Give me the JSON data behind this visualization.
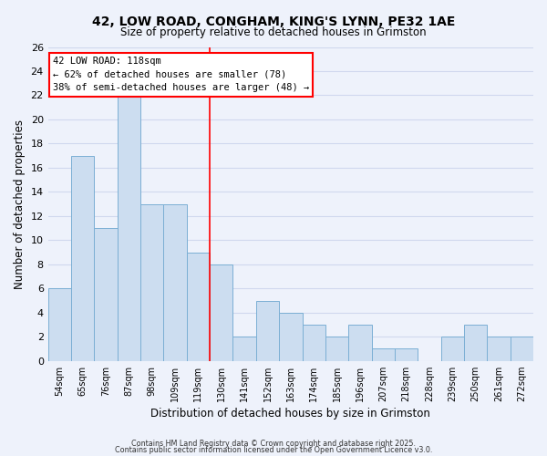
{
  "title1": "42, LOW ROAD, CONGHAM, KING'S LYNN, PE32 1AE",
  "title2": "Size of property relative to detached houses in Grimston",
  "xlabel": "Distribution of detached houses by size in Grimston",
  "ylabel": "Number of detached properties",
  "bar_color": "#ccddf0",
  "bar_edge_color": "#7bafd4",
  "categories": [
    "54sqm",
    "65sqm",
    "76sqm",
    "87sqm",
    "98sqm",
    "109sqm",
    "119sqm",
    "130sqm",
    "141sqm",
    "152sqm",
    "163sqm",
    "174sqm",
    "185sqm",
    "196sqm",
    "207sqm",
    "218sqm",
    "228sqm",
    "239sqm",
    "250sqm",
    "261sqm",
    "272sqm"
  ],
  "values": [
    6,
    17,
    11,
    22,
    13,
    13,
    9,
    8,
    2,
    5,
    4,
    3,
    2,
    3,
    1,
    1,
    0,
    2,
    3,
    2,
    2
  ],
  "ylim": [
    0,
    26
  ],
  "yticks": [
    0,
    2,
    4,
    6,
    8,
    10,
    12,
    14,
    16,
    18,
    20,
    22,
    24,
    26
  ],
  "vline_index": 6,
  "annotation_title": "42 LOW ROAD: 118sqm",
  "annotation_line1": "← 62% of detached houses are smaller (78)",
  "annotation_line2": "38% of semi-detached houses are larger (48) →",
  "footer1": "Contains HM Land Registry data © Crown copyright and database right 2025.",
  "footer2": "Contains public sector information licensed under the Open Government Licence v3.0.",
  "bg_color": "#eef2fb",
  "grid_color": "#d0d8ee"
}
